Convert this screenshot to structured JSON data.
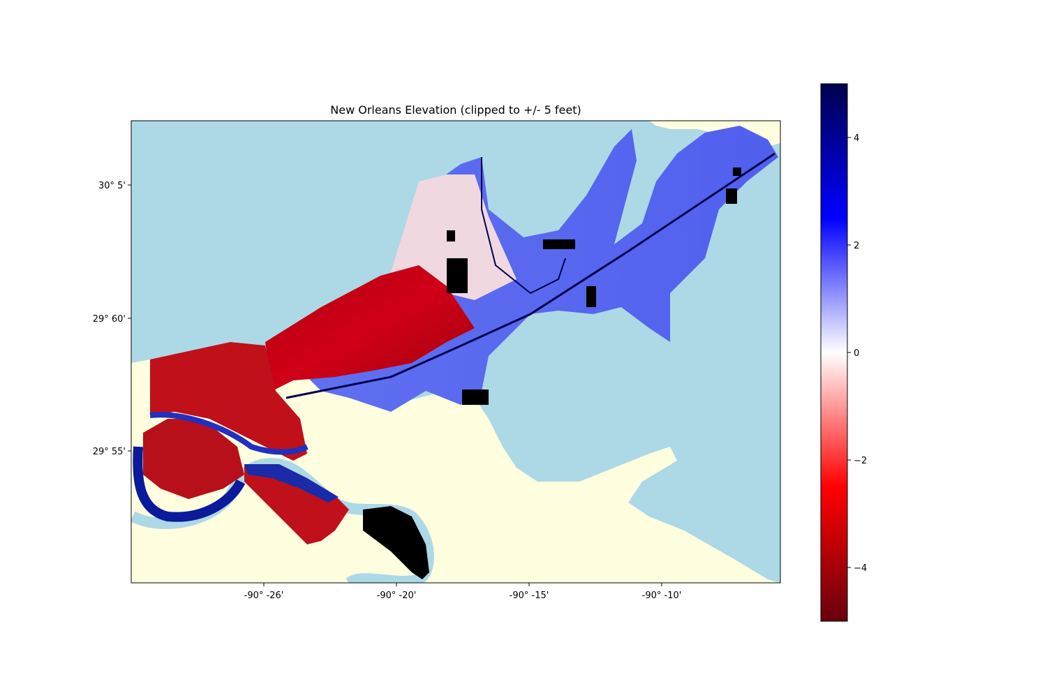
{
  "title": "New Orleans Elevation (clipped to +/- 5 feet)",
  "map": {
    "x_ticks": [
      "-90° -26'",
      "-90° -20'",
      "-90° -15'",
      "-90° -10'"
    ],
    "y_ticks": [
      "30° 5'",
      "29° 60'",
      "29° 55'"
    ],
    "colors": {
      "water": "#add8e6",
      "land": "#ffffe0",
      "nodata": "#000000",
      "colormap": [
        "#67000d",
        "#ff0000",
        "#ffffff",
        "#0000ff",
        "#00004d"
      ]
    }
  },
  "colorbar": {
    "label_min": -5,
    "label_max": 5,
    "ticks": [
      "4",
      "2",
      "0",
      "−2",
      "−4"
    ],
    "tick_values": [
      4,
      2,
      0,
      -2,
      -4
    ]
  }
}
